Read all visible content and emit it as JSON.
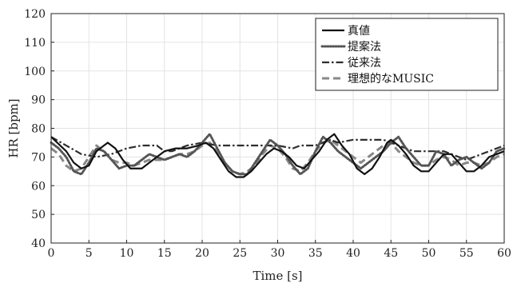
{
  "chart_data": {
    "type": "line",
    "title": "",
    "xlabel": "Time [s]",
    "ylabel": "HR [bpm]",
    "xlim": [
      0,
      60
    ],
    "ylim": [
      40,
      120
    ],
    "xticks": [
      0,
      5,
      10,
      15,
      20,
      25,
      30,
      35,
      40,
      45,
      50,
      55,
      60
    ],
    "yticks": [
      40,
      50,
      60,
      70,
      80,
      90,
      100,
      110,
      120
    ],
    "grid": true,
    "legend_position": "top-right",
    "series": [
      {
        "name": "真値",
        "color": "#111111",
        "style": "solid",
        "points": [
          [
            0,
            77
          ],
          [
            2,
            72
          ],
          [
            3,
            68
          ],
          [
            4,
            66
          ],
          [
            5,
            67
          ],
          [
            6,
            72
          ],
          [
            7,
            74
          ],
          [
            7.5,
            75
          ],
          [
            8.5,
            73
          ],
          [
            9.5,
            69
          ],
          [
            10.5,
            66
          ],
          [
            12,
            66
          ],
          [
            13,
            68
          ],
          [
            14,
            70
          ],
          [
            15,
            72
          ],
          [
            16.5,
            73
          ],
          [
            18,
            73
          ],
          [
            19.5,
            74
          ],
          [
            20.5,
            75
          ],
          [
            21.5,
            73
          ],
          [
            22.5,
            69
          ],
          [
            23.5,
            65
          ],
          [
            24.5,
            63
          ],
          [
            25.5,
            63
          ],
          [
            26.5,
            65
          ],
          [
            27.5,
            68
          ],
          [
            28.5,
            71
          ],
          [
            29.5,
            73
          ],
          [
            30.5,
            72
          ],
          [
            31.5,
            70
          ],
          [
            32.5,
            67
          ],
          [
            33.5,
            66
          ],
          [
            34.5,
            69
          ],
          [
            35.5,
            72
          ],
          [
            36.5,
            76
          ],
          [
            37.5,
            78
          ],
          [
            38.5,
            74
          ],
          [
            39.5,
            71
          ],
          [
            40.5,
            66
          ],
          [
            41.5,
            64
          ],
          [
            42.5,
            66
          ],
          [
            43.5,
            70
          ],
          [
            44.5,
            75
          ],
          [
            45,
            76
          ],
          [
            46,
            74
          ],
          [
            47,
            71
          ],
          [
            48,
            67
          ],
          [
            49,
            65
          ],
          [
            50,
            65
          ],
          [
            51,
            68
          ],
          [
            52,
            71
          ],
          [
            53,
            71
          ],
          [
            54,
            68
          ],
          [
            55,
            65
          ],
          [
            56,
            65
          ],
          [
            57,
            67
          ],
          [
            58,
            70
          ],
          [
            59,
            71
          ],
          [
            60,
            72
          ]
        ]
      },
      {
        "name": "提案法",
        "color": "#555555",
        "style": "dotted",
        "points": [
          [
            0,
            75
          ],
          [
            1,
            73
          ],
          [
            2,
            70
          ],
          [
            3,
            65
          ],
          [
            4,
            64
          ],
          [
            5,
            68
          ],
          [
            6,
            73
          ],
          [
            7,
            72
          ],
          [
            8,
            69
          ],
          [
            9,
            66
          ],
          [
            10,
            67
          ],
          [
            11,
            67
          ],
          [
            12,
            69
          ],
          [
            13,
            71
          ],
          [
            14,
            70
          ],
          [
            15,
            69
          ],
          [
            16,
            70
          ],
          [
            17,
            71
          ],
          [
            18,
            70
          ],
          [
            19,
            72
          ],
          [
            20,
            75
          ],
          [
            21,
            78
          ],
          [
            22,
            73
          ],
          [
            23,
            68
          ],
          [
            24,
            65
          ],
          [
            25,
            64
          ],
          [
            26,
            64
          ],
          [
            27,
            68
          ],
          [
            28,
            72
          ],
          [
            29,
            76
          ],
          [
            30,
            74
          ],
          [
            31,
            71
          ],
          [
            32,
            67
          ],
          [
            33,
            64
          ],
          [
            34,
            66
          ],
          [
            35,
            72
          ],
          [
            36,
            77
          ],
          [
            37,
            75
          ],
          [
            38,
            72
          ],
          [
            39,
            70
          ],
          [
            40,
            68
          ],
          [
            41,
            66
          ],
          [
            42,
            68
          ],
          [
            43,
            70
          ],
          [
            44,
            72
          ],
          [
            45,
            75
          ],
          [
            46,
            77
          ],
          [
            47,
            73
          ],
          [
            48,
            70
          ],
          [
            49,
            67
          ],
          [
            50,
            67
          ],
          [
            51,
            72
          ],
          [
            52,
            71
          ],
          [
            53,
            67
          ],
          [
            54,
            69
          ],
          [
            55,
            70
          ],
          [
            56,
            68
          ],
          [
            57,
            66
          ],
          [
            58,
            68
          ],
          [
            59,
            72
          ],
          [
            60,
            73
          ]
        ]
      },
      {
        "name": "従来法",
        "color": "#2e2e2e",
        "style": "dashdot",
        "points": [
          [
            0,
            77
          ],
          [
            2,
            74
          ],
          [
            4,
            71
          ],
          [
            6,
            70
          ],
          [
            8,
            71
          ],
          [
            10,
            73
          ],
          [
            12,
            74
          ],
          [
            14,
            74
          ],
          [
            15,
            72
          ],
          [
            16,
            72
          ],
          [
            18,
            74
          ],
          [
            20,
            75
          ],
          [
            22,
            74
          ],
          [
            25,
            74
          ],
          [
            28,
            74
          ],
          [
            30,
            74
          ],
          [
            32,
            73
          ],
          [
            33,
            74
          ],
          [
            35,
            74
          ],
          [
            37,
            76
          ],
          [
            38,
            75
          ],
          [
            40,
            76
          ],
          [
            42,
            76
          ],
          [
            44,
            76
          ],
          [
            45,
            75
          ],
          [
            46,
            74
          ],
          [
            48,
            72
          ],
          [
            50,
            72
          ],
          [
            52,
            72
          ],
          [
            54,
            70
          ],
          [
            55,
            69
          ],
          [
            56,
            70
          ],
          [
            58,
            72
          ],
          [
            60,
            74
          ]
        ]
      },
      {
        "name": "理想的なMUSIC",
        "color": "#888888",
        "style": "dashed",
        "points": [
          [
            0,
            73
          ],
          [
            1,
            71
          ],
          [
            2,
            67
          ],
          [
            3,
            65
          ],
          [
            4,
            66
          ],
          [
            5,
            70
          ],
          [
            6,
            74
          ],
          [
            7,
            72
          ],
          [
            8,
            69
          ],
          [
            9,
            68
          ],
          [
            10,
            68
          ],
          [
            11,
            67
          ],
          [
            12,
            68
          ],
          [
            13,
            69
          ],
          [
            14,
            69
          ],
          [
            15,
            69
          ],
          [
            16,
            70
          ],
          [
            17,
            71
          ],
          [
            18,
            71
          ],
          [
            19,
            72
          ],
          [
            20,
            74
          ],
          [
            21,
            75
          ],
          [
            22,
            72
          ],
          [
            23,
            68
          ],
          [
            24,
            65
          ],
          [
            25,
            64
          ],
          [
            26,
            65
          ],
          [
            27,
            67
          ],
          [
            28,
            71
          ],
          [
            29,
            74
          ],
          [
            30,
            73
          ],
          [
            31,
            70
          ],
          [
            32,
            66
          ],
          [
            33,
            65
          ],
          [
            34,
            68
          ],
          [
            35,
            72
          ],
          [
            36,
            75
          ],
          [
            37,
            76
          ],
          [
            38,
            74
          ],
          [
            39,
            72
          ],
          [
            40,
            70
          ],
          [
            41,
            68
          ],
          [
            42,
            70
          ],
          [
            43,
            72
          ],
          [
            44,
            74
          ],
          [
            45,
            75
          ],
          [
            46,
            72
          ],
          [
            47,
            70
          ],
          [
            48,
            68
          ],
          [
            49,
            67
          ],
          [
            50,
            67
          ],
          [
            51,
            69
          ],
          [
            52,
            70
          ],
          [
            53,
            69
          ],
          [
            54,
            67
          ],
          [
            55,
            68
          ],
          [
            56,
            68
          ],
          [
            57,
            67
          ],
          [
            58,
            68
          ],
          [
            59,
            70
          ],
          [
            60,
            71
          ]
        ]
      }
    ]
  }
}
